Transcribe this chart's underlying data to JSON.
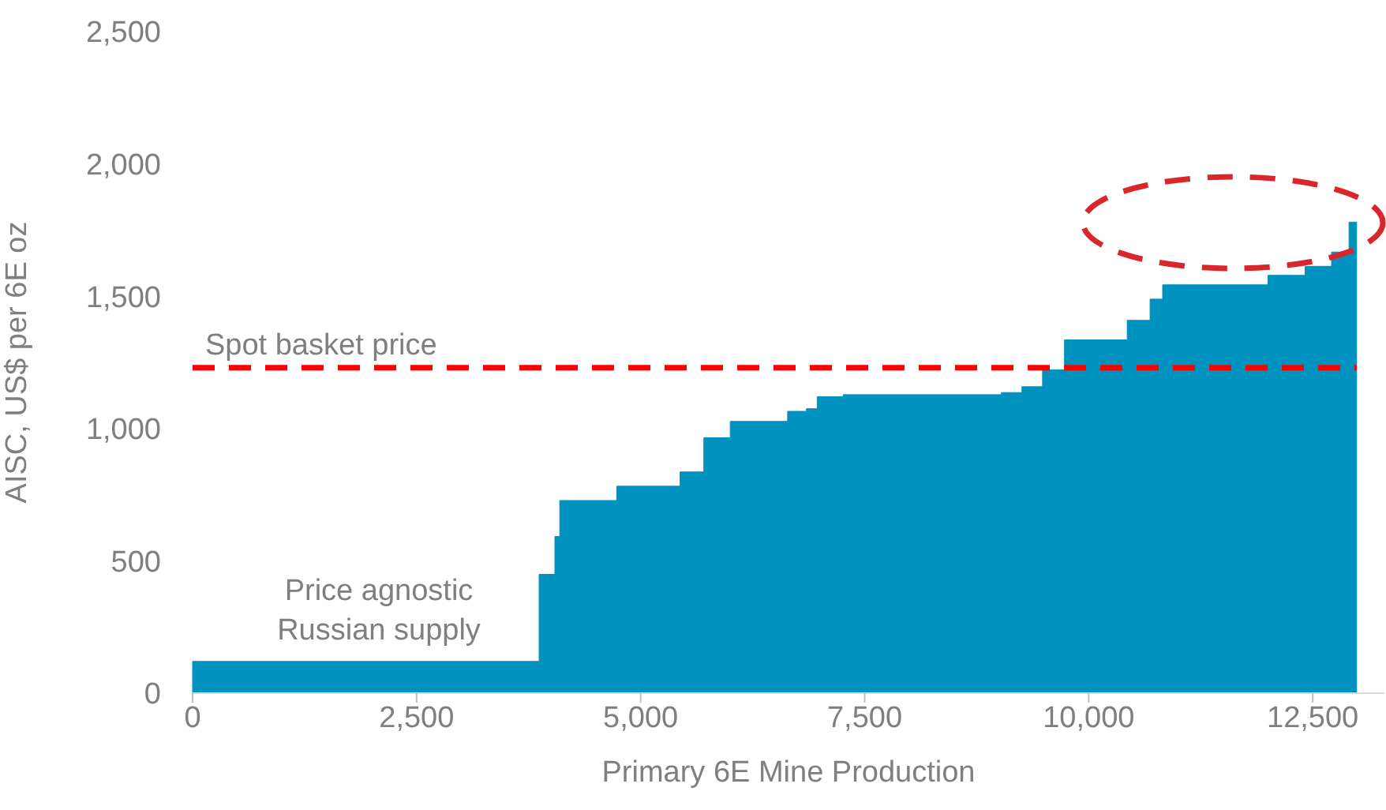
{
  "chart_data": {
    "type": "histogram",
    "xlabel": "Primary 6E Mine Production",
    "ylabel": "AISC, US$ per 6E oz",
    "bins": [
      0,
      3867,
      4043,
      4097,
      4733,
      5440,
      5705,
      6000,
      6640,
      6850,
      6970,
      7260,
      9025,
      9255,
      9485,
      9730,
      10430,
      10685,
      10825,
      12000,
      12415,
      12710,
      12905,
      12990
    ],
    "values": [
      120,
      449,
      592,
      728,
      782,
      836,
      965,
      1027,
      1065,
      1075,
      1120,
      1128,
      1136,
      1158,
      1222,
      1335,
      1409,
      1489,
      1543,
      1579,
      1613,
      1667,
      1780
    ],
    "color": "#0092bf",
    "xlim": [
      0,
      13300
    ],
    "xticks": [
      0,
      {
        "value": 2500,
        "label": "2,500"
      },
      {
        "value": 5000,
        "label": "5,000"
      },
      {
        "value": 7500,
        "label": "7,500"
      },
      {
        "value": 10000,
        "label": "10,000"
      },
      {
        "value": 12500,
        "label": "12,500"
      }
    ],
    "ylim": [
      0,
      2500
    ],
    "yticks": [
      0,
      {
        "value": 500,
        "label": "500"
      },
      {
        "value": 1000,
        "label": "1,000"
      },
      {
        "value": 1500,
        "label": "1,500"
      },
      {
        "value": 2000,
        "label": "2,000"
      },
      {
        "value": 2500,
        "label": "2,500"
      }
    ],
    "ref_lines": [
      {
        "axis": "y",
        "value": 1230,
        "label": "Spot basket price",
        "color": "#ff0000",
        "line_style": "dashed"
      }
    ],
    "annotations": [
      "Price agnostic Russian supply"
    ]
  }
}
